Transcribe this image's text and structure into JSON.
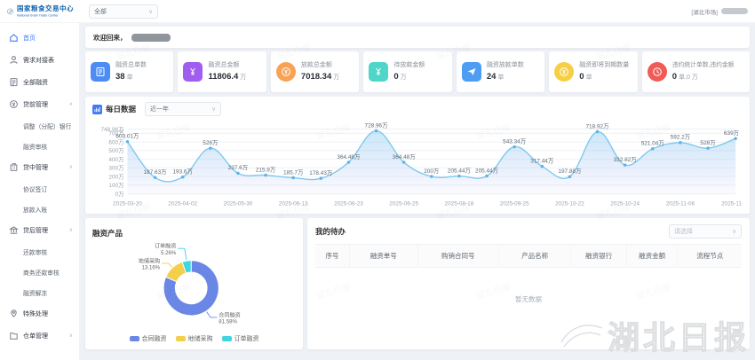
{
  "header": {
    "brand_cn": "国家粮食交易中心",
    "brand_en": "National Grain Trade Center",
    "scope_select": "全部",
    "market_tag": "[湖北市场]"
  },
  "sidebar": {
    "items": [
      {
        "label": "首页",
        "icon": "home-icon",
        "active": true
      },
      {
        "label": "需求对接表",
        "icon": "user-icon"
      },
      {
        "label": "全部融资",
        "icon": "list-icon"
      },
      {
        "label": "贷前管理",
        "icon": "pre-loan-icon",
        "group": true,
        "expanded": true
      },
      {
        "label": "调整（分配）银行",
        "sub": true
      },
      {
        "label": "融资审核",
        "sub": true
      },
      {
        "label": "贷中管理",
        "icon": "mid-loan-icon",
        "group": true,
        "expanded": true
      },
      {
        "label": "协议签订",
        "sub": true
      },
      {
        "label": "放款入账",
        "sub": true
      },
      {
        "label": "贷后管理",
        "icon": "post-loan-icon",
        "group": true,
        "expanded": true
      },
      {
        "label": "还款审核",
        "sub": true
      },
      {
        "label": "商务还款审核",
        "sub": true
      },
      {
        "label": "融资解冻",
        "sub": true
      },
      {
        "label": "特殊处理",
        "icon": "pin-icon"
      },
      {
        "label": "仓单管理",
        "icon": "folder-icon",
        "group": true,
        "expanded": false
      }
    ]
  },
  "welcome": {
    "text": "欢迎回来，"
  },
  "stats": [
    {
      "label": "融资总单数",
      "value": "38",
      "unit": "单",
      "color": "#4d8bf5",
      "icon": "document-icon",
      "shape": "square"
    },
    {
      "label": "融资总金额",
      "value": "11806.4",
      "unit": "万",
      "color": "#a05df0",
      "icon": "yen-icon",
      "shape": "square"
    },
    {
      "label": "放款总金额",
      "value": "7018.34",
      "unit": "万",
      "color": "#f7a254",
      "icon": "coin-icon",
      "shape": "circle"
    },
    {
      "label": "待放款金额",
      "value": "0",
      "unit": "万",
      "color": "#4fd6c9",
      "icon": "yen-icon",
      "shape": "square"
    },
    {
      "label": "融资放款单数",
      "value": "24",
      "unit": "单",
      "color": "#4d9df5",
      "icon": "send-icon",
      "shape": "square"
    },
    {
      "label": "融资即将到期数量",
      "value": "0",
      "unit": "单",
      "color": "#f6cf44",
      "icon": "coin-icon",
      "shape": "circle"
    },
    {
      "label": "违约统计单数,违约金额",
      "value": "0",
      "unit": "单,0 万",
      "color": "#f05b56",
      "icon": "clock-icon",
      "shape": "circle",
      "wide": true
    }
  ],
  "chart_data": [
    {
      "type": "line",
      "title": "每日数据",
      "range_select": "近一年",
      "x_tick_labels": [
        "2025-03-20",
        "2025-04-02",
        "2025-05-30",
        "2025-06-13",
        "2025-06-23",
        "2025-06-25",
        "2025-08-18",
        "2025-09-25",
        "2025-10-22",
        "2025-10-24",
        "2025-11-06",
        "2025-11-18"
      ],
      "values": [
        603.01,
        187.63,
        193.6,
        528,
        237.6,
        215.9,
        185.7,
        178.43,
        364.48,
        728.96,
        364.48,
        200,
        205.44,
        205.44,
        543.34,
        317.44,
        197.88,
        718.92,
        332.82,
        521.04,
        592.2,
        528,
        639
      ],
      "labels": [
        "603.01万",
        "187.63万",
        "193.6万",
        "528万",
        "237.6万",
        "215.9万",
        "185.7万",
        "178.43万",
        "364.48万",
        "728.96万",
        "364.48万",
        "200万",
        "205.44万",
        "205.44万",
        "543.34万",
        "317.44万",
        "197.88万",
        "718.92万",
        "332.82万",
        "521.04万",
        "592.2万",
        "528万",
        "639万"
      ],
      "y_ticks": [
        "0万",
        "100万",
        "200万",
        "300万",
        "400万",
        "500万",
        "600万",
        "700万",
        "748.96万"
      ],
      "y_tick_values": [
        0,
        100,
        200,
        300,
        400,
        500,
        600,
        700,
        748.96
      ],
      "ymax": 748.96,
      "line_color": "#7dc8ef",
      "area_color": "#bfe3f7",
      "grid": true,
      "legend_position": "none"
    },
    {
      "type": "pie",
      "title": "融资产品",
      "slices": [
        {
          "name": "合同融资",
          "pct": 81.58,
          "color": "#6b87e6"
        },
        {
          "name": "地储采购",
          "pct": 13.16,
          "color": "#f4cf4a"
        },
        {
          "name": "订单融资",
          "pct": 5.26,
          "color": "#41d5e3"
        }
      ],
      "legend": [
        "合同融资",
        "地储采购",
        "订单融资"
      ],
      "legend_position": "bottom"
    }
  ],
  "todo": {
    "title": "我的待办",
    "filter_placeholder": "请选择",
    "columns": [
      "序号",
      "融资单号",
      "购销合同号",
      "产品名称",
      "融资银行",
      "融资金额",
      "流程节点"
    ],
    "col_widths": [
      "8%",
      "16%",
      "19%",
      "17%",
      "13%",
      "12%",
      "15%"
    ],
    "empty_text": "暂无数据"
  },
  "watermark": {
    "text": "湖北日报"
  }
}
